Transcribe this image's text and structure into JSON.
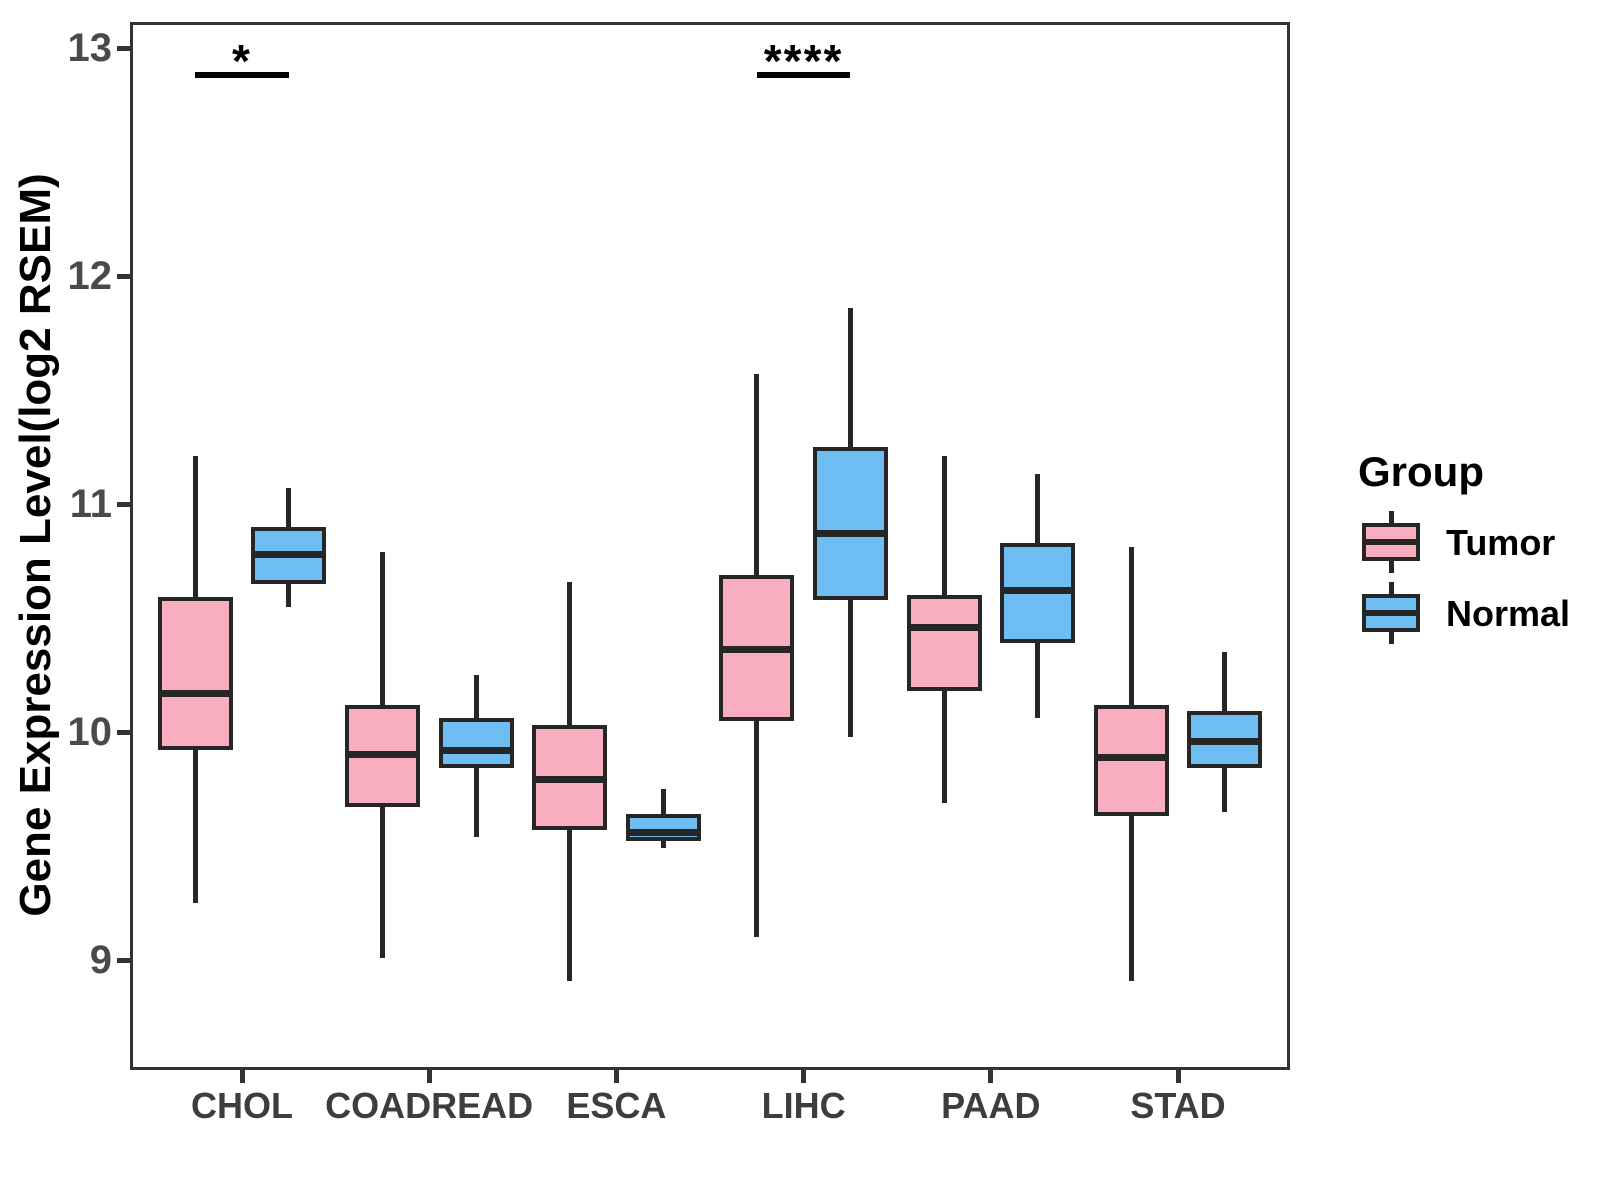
{
  "chart_data": {
    "type": "boxplot",
    "title": "",
    "xlabel": "",
    "ylabel": "Gene Expression Level(log2 RSEM)",
    "legend_title": "Group",
    "legend_position": "right",
    "grid": false,
    "ylim": [
      8.5,
      13.15
    ],
    "yticks": [
      "13",
      "12",
      "11",
      "10",
      "9"
    ],
    "ytick_values": [
      13,
      12,
      11,
      10,
      9
    ],
    "categories": [
      "CHOL",
      "COADREAD",
      "ESCA",
      "LIHC",
      "PAAD",
      "STAD"
    ],
    "groups": [
      "Tumor",
      "Normal"
    ],
    "colors": {
      "Tumor": "#F9AEC0",
      "Normal": "#6FBEF2"
    },
    "line_color": "#262626",
    "series": [
      {
        "name": "Tumor",
        "color": "#F9AEC0",
        "boxes": [
          {
            "category": "CHOL",
            "low": 9.25,
            "q1": 9.92,
            "median": 10.17,
            "q3": 10.59,
            "high": 11.21
          },
          {
            "category": "COADREAD",
            "low": 9.01,
            "q1": 9.67,
            "median": 9.9,
            "q3": 10.12,
            "high": 10.79
          },
          {
            "category": "ESCA",
            "low": 8.91,
            "q1": 9.57,
            "median": 9.79,
            "q3": 10.03,
            "high": 10.66
          },
          {
            "category": "LIHC",
            "low": 9.1,
            "q1": 10.05,
            "median": 10.36,
            "q3": 10.69,
            "high": 11.57
          },
          {
            "category": "PAAD",
            "low": 9.69,
            "q1": 10.18,
            "median": 10.46,
            "q3": 10.6,
            "high": 11.21
          },
          {
            "category": "STAD",
            "low": 8.91,
            "q1": 9.63,
            "median": 9.89,
            "q3": 10.12,
            "high": 10.81
          }
        ]
      },
      {
        "name": "Normal",
        "color": "#6FBEF2",
        "boxes": [
          {
            "category": "CHOL",
            "low": 10.55,
            "q1": 10.65,
            "median": 10.78,
            "q3": 10.9,
            "high": 11.07
          },
          {
            "category": "COADREAD",
            "low": 9.54,
            "q1": 9.84,
            "median": 9.92,
            "q3": 10.06,
            "high": 10.25
          },
          {
            "category": "ESCA",
            "low": 9.49,
            "q1": 9.52,
            "median": 9.56,
            "q3": 9.64,
            "high": 9.75
          },
          {
            "category": "LIHC",
            "low": 9.98,
            "q1": 10.58,
            "median": 10.87,
            "q3": 11.25,
            "high": 11.86
          },
          {
            "category": "PAAD",
            "low": 10.06,
            "q1": 10.39,
            "median": 10.62,
            "q3": 10.83,
            "high": 11.13
          },
          {
            "category": "STAD",
            "low": 9.65,
            "q1": 9.84,
            "median": 9.96,
            "q3": 10.09,
            "high": 10.35
          }
        ]
      }
    ],
    "annotations": [
      {
        "category": "CHOL",
        "label": "*"
      },
      {
        "category": "LIHC",
        "label": "****"
      }
    ]
  }
}
